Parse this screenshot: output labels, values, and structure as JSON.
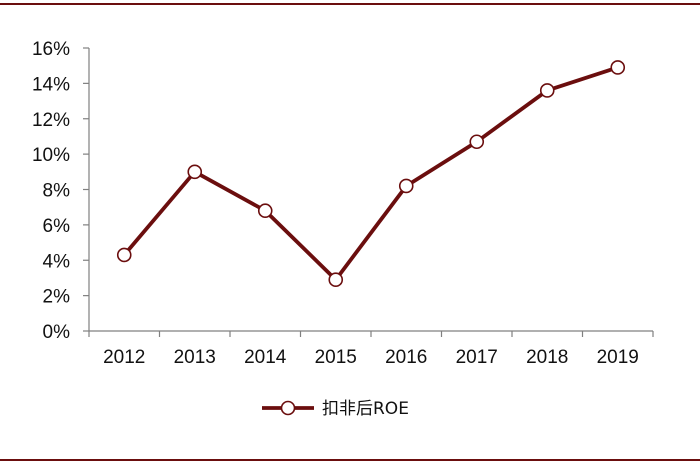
{
  "chart_data": {
    "type": "line",
    "categories": [
      "2012",
      "2013",
      "2014",
      "2015",
      "2016",
      "2017",
      "2018",
      "2019"
    ],
    "series": [
      {
        "name": "扣非后ROE",
        "values": [
          4.3,
          9.0,
          6.8,
          2.9,
          8.2,
          10.7,
          13.6,
          14.9
        ]
      }
    ],
    "title": "",
    "xlabel": "",
    "ylabel": "",
    "ylim": [
      0,
      16
    ],
    "yticks": [
      "0%",
      "2%",
      "4%",
      "6%",
      "8%",
      "10%",
      "12%",
      "14%",
      "16%"
    ],
    "grid": false,
    "legend_position": "bottom",
    "colors": {
      "line": "#6b0e0e",
      "marker_fill": "#ffffff",
      "axis": "#808080",
      "frame": "#6b0e0e"
    }
  }
}
